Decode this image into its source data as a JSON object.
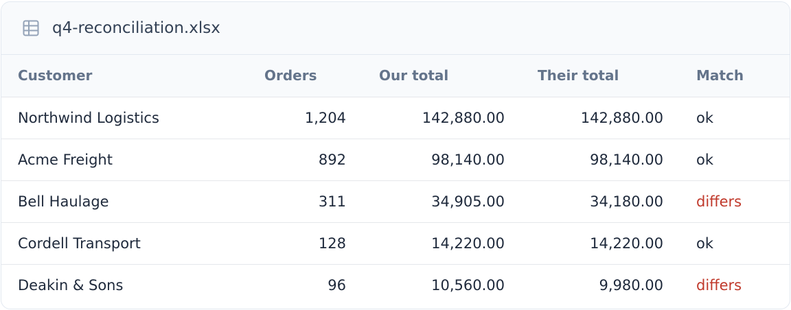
{
  "header": {
    "title": "q4-reconciliation.xlsx"
  },
  "table": {
    "columns": [
      "Customer",
      "Orders",
      "Our total",
      "Their total",
      "Match"
    ],
    "rows": [
      [
        "Northwind Logistics",
        "1,204",
        "142,880.00",
        "142,880.00",
        "ok"
      ],
      [
        "Acme Freight",
        "892",
        "98,140.00",
        "98,140.00",
        "ok"
      ],
      [
        "Bell Haulage",
        "311",
        "34,905.00",
        "34,180.00",
        "differs"
      ],
      [
        "Cordell Transport",
        "128",
        "14,220.00",
        "14,220.00",
        "ok"
      ],
      [
        "Deakin & Sons",
        "96",
        "10,560.00",
        "9,980.00",
        "differs"
      ]
    ],
    "status_colors": {
      "ok": "#1e293b",
      "differs": "#c0392b"
    }
  }
}
